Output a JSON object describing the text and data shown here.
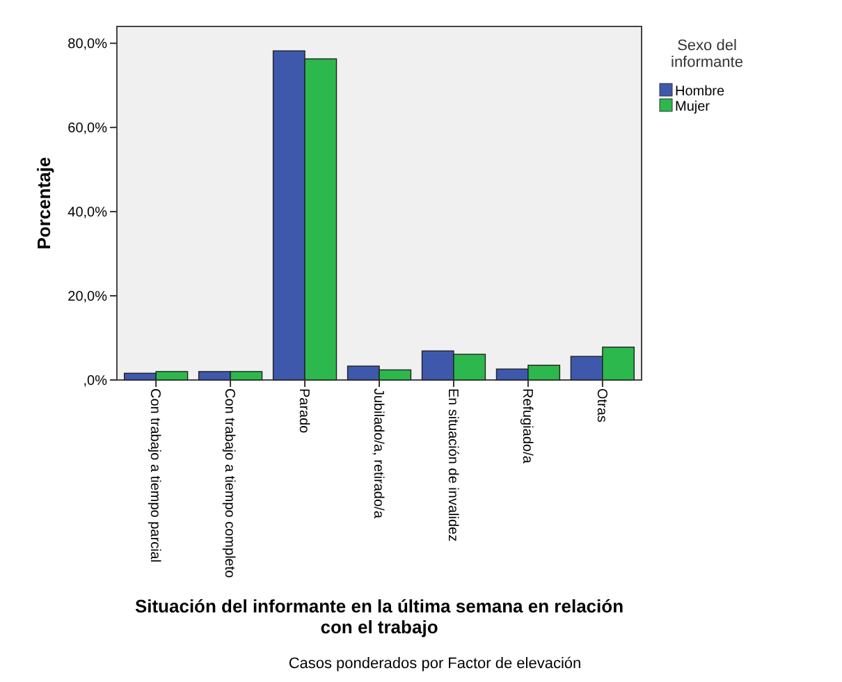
{
  "chart_data": {
    "type": "bar",
    "xlabel": "Situación del informante en la última semana en relación con el trabajo",
    "ylabel": "Porcentaje",
    "legend_title": "Sexo del informante",
    "annotations": [
      "Casos ponderados por Factor de elevación"
    ],
    "categories": [
      "Con trabajo a tiempo parcial",
      "Con trabajo a tiempo completo",
      "Parado",
      "Jubilado/a, retirado/a",
      "En situación de invalidez",
      "Refugiado/a",
      "Otras"
    ],
    "series": [
      {
        "name": "Hombre",
        "color": "#3e58ac",
        "values": [
          1.6,
          2.0,
          78.2,
          3.3,
          6.9,
          2.6,
          5.6
        ]
      },
      {
        "name": "Mujer",
        "color": "#2db84d",
        "values": [
          2.0,
          2.0,
          76.3,
          2.4,
          6.1,
          3.5,
          7.8
        ]
      }
    ],
    "ylim": [
      0,
      84
    ],
    "yticks": [
      {
        "value": 0,
        "label": ",0%"
      },
      {
        "value": 20,
        "label": "20,0%"
      },
      {
        "value": 40,
        "label": "40,0%"
      },
      {
        "value": 60,
        "label": "60,0%"
      },
      {
        "value": 80,
        "label": "80,0%"
      }
    ],
    "grid": false,
    "legend": "top right"
  }
}
